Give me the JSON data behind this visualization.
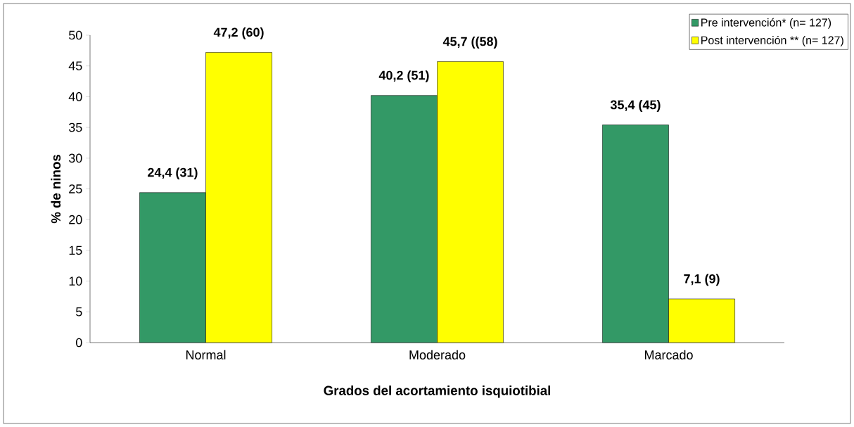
{
  "chart_data": {
    "type": "bar",
    "xlabel": "Grados del acortamiento isquiotibial",
    "ylabel": "% de ninos",
    "categories": [
      "Normal",
      "Moderado",
      "Marcado"
    ],
    "series": [
      {
        "name": "Pre intervención* (n= 127)",
        "color": "#339966",
        "values": [
          24.4,
          40.2,
          35.4
        ],
        "value_labels": [
          "24,4 (31)",
          "40,2 (51)",
          "35,4 (45)"
        ]
      },
      {
        "name": "Post intervención ** (n= 127)",
        "color": "#ffff00",
        "values": [
          47.2,
          45.7,
          7.1
        ],
        "value_labels": [
          "47,2 (60)",
          "45,7 ((58)",
          "7,1 (9)"
        ]
      }
    ],
    "ylim": [
      0,
      50
    ],
    "yticks": [
      0,
      5,
      10,
      15,
      20,
      25,
      30,
      35,
      40,
      45,
      50
    ],
    "grid": false,
    "legend": "top right"
  }
}
